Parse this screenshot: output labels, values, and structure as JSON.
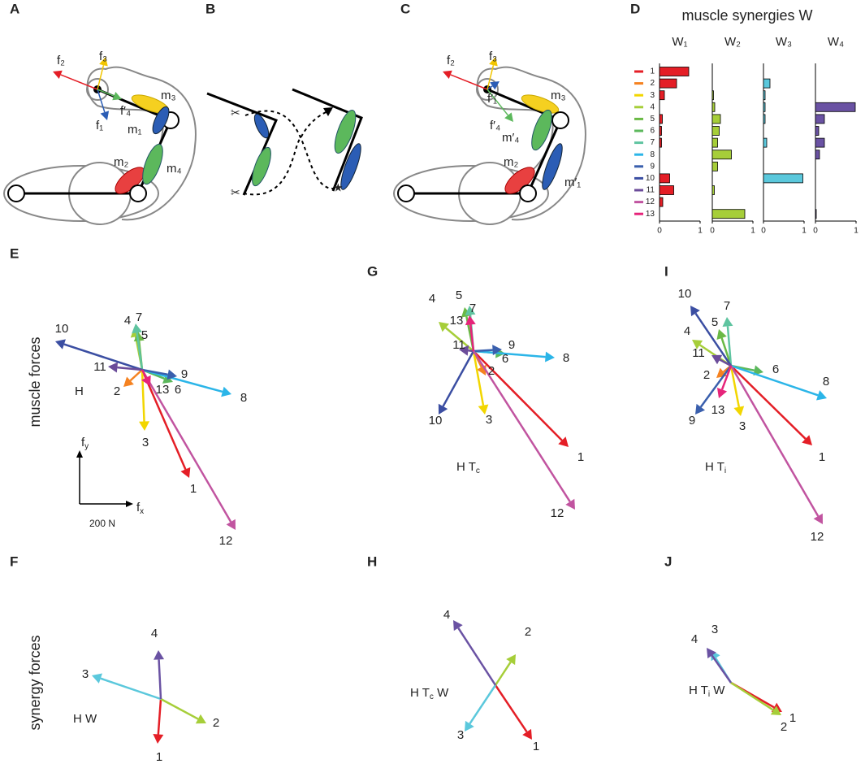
{
  "panels": {
    "letters": [
      "A",
      "B",
      "C",
      "D",
      "E",
      "F",
      "G",
      "H",
      "I",
      "J"
    ],
    "row_labels": [
      "muscle forces",
      "synergy forces"
    ],
    "A": {
      "f": [
        "f₁",
        "f₂",
        "f₃",
        "f′₄"
      ],
      "m": [
        "m₁",
        "m₂",
        "m₃",
        "m₄"
      ]
    },
    "C": {
      "f": [
        "f′₁",
        "f₂",
        "f₃",
        "f′₄"
      ],
      "m": [
        "m′₁",
        "m₂",
        "m₃",
        "m′₄"
      ]
    },
    "E_label": "H",
    "scale": {
      "fy": "f",
      "fy_sub": "y",
      "fx": "f",
      "fx_sub": "x",
      "length": "200 N"
    },
    "G_label": {
      "main": "H T",
      "sub": "c"
    },
    "I_label": {
      "main": "H T",
      "sub": "i"
    },
    "F_label": "H W",
    "H_label": {
      "main": "H T",
      "sub": "c",
      "tail": " W"
    },
    "J_label": {
      "main": "H T",
      "sub": "i",
      "tail": " W"
    },
    "synergy_labels": [
      "1",
      "2",
      "3",
      "4"
    ]
  },
  "chart_data": {
    "type": "bar",
    "orientation": "horizontal",
    "title": "muscle synergies W",
    "categories": [
      "1",
      "2",
      "3",
      "4",
      "5",
      "6",
      "7",
      "8",
      "9",
      "10",
      "11",
      "12",
      "13"
    ],
    "category_colors": [
      "#e41e26",
      "#f58220",
      "#f2d600",
      "#a6ce39",
      "#6ab945",
      "#5cb85c",
      "#5fc4a0",
      "#2bb5e8",
      "#3a5fad",
      "#3b4ea2",
      "#6b4c9a",
      "#c154a0",
      "#e6247a"
    ],
    "xlim": [
      0,
      1
    ],
    "xticks": [
      0,
      1
    ],
    "series": [
      {
        "name": "W₁",
        "color": "#e41e26",
        "values": [
          0.72,
          0.42,
          0.12,
          0,
          0.07,
          0.05,
          0.05,
          0,
          0,
          0.25,
          0.35,
          0.08,
          0
        ]
      },
      {
        "name": "W₂",
        "color": "#a6ce39",
        "values": [
          0,
          0,
          0.03,
          0.06,
          0.2,
          0.17,
          0.13,
          0.47,
          0.13,
          0,
          0.05,
          0,
          0.8
        ]
      },
      {
        "name": "W₃",
        "color": "#5bc8dc",
        "values": [
          0,
          0.16,
          0.04,
          0.04,
          0.04,
          0,
          0.08,
          0,
          0,
          0.97,
          0,
          0,
          0
        ]
      },
      {
        "name": "W₄",
        "color": "#6a52a3",
        "values": [
          0,
          0,
          0,
          0.98,
          0.22,
          0.08,
          0.22,
          0.1,
          0,
          0,
          0,
          0,
          0.02
        ]
      }
    ]
  }
}
